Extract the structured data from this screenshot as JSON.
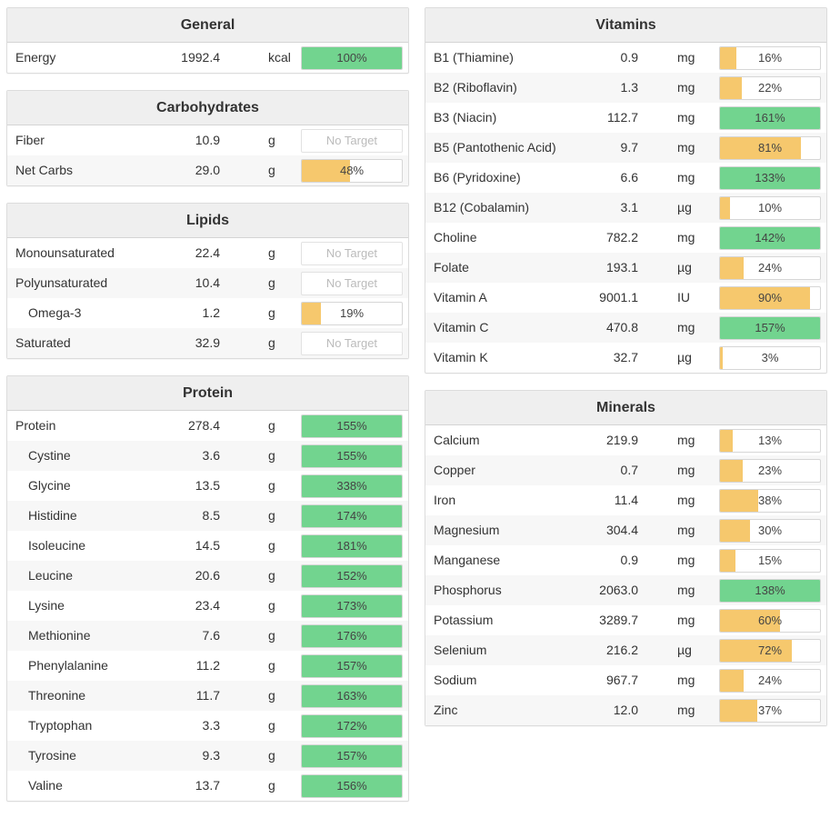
{
  "colors": {
    "under": "#f6c86d",
    "over": "#72d48f"
  },
  "no_target_label": "No Target",
  "left_panels": [
    {
      "title": "General",
      "rows": [
        {
          "name": "Energy",
          "amount": "1992.4",
          "unit": "kcal",
          "percent_label": "100%",
          "percent": 100,
          "indent": false
        }
      ]
    },
    {
      "title": "Carbohydrates",
      "rows": [
        {
          "name": "Fiber",
          "amount": "10.9",
          "unit": "g",
          "percent_label": null,
          "percent": null,
          "indent": false
        },
        {
          "name": "Net Carbs",
          "amount": "29.0",
          "unit": "g",
          "percent_label": "48%",
          "percent": 48,
          "indent": false
        }
      ]
    },
    {
      "title": "Lipids",
      "rows": [
        {
          "name": "Monounsaturated",
          "amount": "22.4",
          "unit": "g",
          "percent_label": null,
          "percent": null,
          "indent": false
        },
        {
          "name": "Polyunsaturated",
          "amount": "10.4",
          "unit": "g",
          "percent_label": null,
          "percent": null,
          "indent": false
        },
        {
          "name": "Omega-3",
          "amount": "1.2",
          "unit": "g",
          "percent_label": "19%",
          "percent": 19,
          "indent": true
        },
        {
          "name": "Saturated",
          "amount": "32.9",
          "unit": "g",
          "percent_label": null,
          "percent": null,
          "indent": false
        }
      ]
    },
    {
      "title": "Protein",
      "rows": [
        {
          "name": "Protein",
          "amount": "278.4",
          "unit": "g",
          "percent_label": "155%",
          "percent": 155,
          "indent": false
        },
        {
          "name": "Cystine",
          "amount": "3.6",
          "unit": "g",
          "percent_label": "155%",
          "percent": 155,
          "indent": true
        },
        {
          "name": "Glycine",
          "amount": "13.5",
          "unit": "g",
          "percent_label": "338%",
          "percent": 338,
          "indent": true
        },
        {
          "name": "Histidine",
          "amount": "8.5",
          "unit": "g",
          "percent_label": "174%",
          "percent": 174,
          "indent": true
        },
        {
          "name": "Isoleucine",
          "amount": "14.5",
          "unit": "g",
          "percent_label": "181%",
          "percent": 181,
          "indent": true
        },
        {
          "name": "Leucine",
          "amount": "20.6",
          "unit": "g",
          "percent_label": "152%",
          "percent": 152,
          "indent": true
        },
        {
          "name": "Lysine",
          "amount": "23.4",
          "unit": "g",
          "percent_label": "173%",
          "percent": 173,
          "indent": true
        },
        {
          "name": "Methionine",
          "amount": "7.6",
          "unit": "g",
          "percent_label": "176%",
          "percent": 176,
          "indent": true
        },
        {
          "name": "Phenylalanine",
          "amount": "11.2",
          "unit": "g",
          "percent_label": "157%",
          "percent": 157,
          "indent": true
        },
        {
          "name": "Threonine",
          "amount": "11.7",
          "unit": "g",
          "percent_label": "163%",
          "percent": 163,
          "indent": true
        },
        {
          "name": "Tryptophan",
          "amount": "3.3",
          "unit": "g",
          "percent_label": "172%",
          "percent": 172,
          "indent": true
        },
        {
          "name": "Tyrosine",
          "amount": "9.3",
          "unit": "g",
          "percent_label": "157%",
          "percent": 157,
          "indent": true
        },
        {
          "name": "Valine",
          "amount": "13.7",
          "unit": "g",
          "percent_label": "156%",
          "percent": 156,
          "indent": true
        }
      ]
    }
  ],
  "right_panels": [
    {
      "title": "Vitamins",
      "rows": [
        {
          "name": "B1 (Thiamine)",
          "amount": "0.9",
          "unit": "mg",
          "percent_label": "16%",
          "percent": 16,
          "indent": false
        },
        {
          "name": "B2 (Riboflavin)",
          "amount": "1.3",
          "unit": "mg",
          "percent_label": "22%",
          "percent": 22,
          "indent": false
        },
        {
          "name": "B3 (Niacin)",
          "amount": "112.7",
          "unit": "mg",
          "percent_label": "161%",
          "percent": 161,
          "indent": false
        },
        {
          "name": "B5 (Pantothenic Acid)",
          "amount": "9.7",
          "unit": "mg",
          "percent_label": "81%",
          "percent": 81,
          "indent": false
        },
        {
          "name": "B6 (Pyridoxine)",
          "amount": "6.6",
          "unit": "mg",
          "percent_label": "133%",
          "percent": 133,
          "indent": false
        },
        {
          "name": "B12 (Cobalamin)",
          "amount": "3.1",
          "unit": "µg",
          "percent_label": "10%",
          "percent": 10,
          "indent": false
        },
        {
          "name": "Choline",
          "amount": "782.2",
          "unit": "mg",
          "percent_label": "142%",
          "percent": 142,
          "indent": false
        },
        {
          "name": "Folate",
          "amount": "193.1",
          "unit": "µg",
          "percent_label": "24%",
          "percent": 24,
          "indent": false
        },
        {
          "name": "Vitamin A",
          "amount": "9001.1",
          "unit": "IU",
          "percent_label": "90%",
          "percent": 90,
          "indent": false
        },
        {
          "name": "Vitamin C",
          "amount": "470.8",
          "unit": "mg",
          "percent_label": "157%",
          "percent": 157,
          "indent": false
        },
        {
          "name": "Vitamin K",
          "amount": "32.7",
          "unit": "µg",
          "percent_label": "3%",
          "percent": 3,
          "indent": false
        }
      ]
    },
    {
      "title": "Minerals",
      "rows": [
        {
          "name": "Calcium",
          "amount": "219.9",
          "unit": "mg",
          "percent_label": "13%",
          "percent": 13,
          "indent": false
        },
        {
          "name": "Copper",
          "amount": "0.7",
          "unit": "mg",
          "percent_label": "23%",
          "percent": 23,
          "indent": false
        },
        {
          "name": "Iron",
          "amount": "11.4",
          "unit": "mg",
          "percent_label": "38%",
          "percent": 38,
          "indent": false
        },
        {
          "name": "Magnesium",
          "amount": "304.4",
          "unit": "mg",
          "percent_label": "30%",
          "percent": 30,
          "indent": false
        },
        {
          "name": "Manganese",
          "amount": "0.9",
          "unit": "mg",
          "percent_label": "15%",
          "percent": 15,
          "indent": false
        },
        {
          "name": "Phosphorus",
          "amount": "2063.0",
          "unit": "mg",
          "percent_label": "138%",
          "percent": 138,
          "indent": false
        },
        {
          "name": "Potassium",
          "amount": "3289.7",
          "unit": "mg",
          "percent_label": "60%",
          "percent": 60,
          "indent": false
        },
        {
          "name": "Selenium",
          "amount": "216.2",
          "unit": "µg",
          "percent_label": "72%",
          "percent": 72,
          "indent": false
        },
        {
          "name": "Sodium",
          "amount": "967.7",
          "unit": "mg",
          "percent_label": "24%",
          "percent": 24,
          "indent": false
        },
        {
          "name": "Zinc",
          "amount": "12.0",
          "unit": "mg",
          "percent_label": "37%",
          "percent": 37,
          "indent": false
        }
      ]
    }
  ]
}
